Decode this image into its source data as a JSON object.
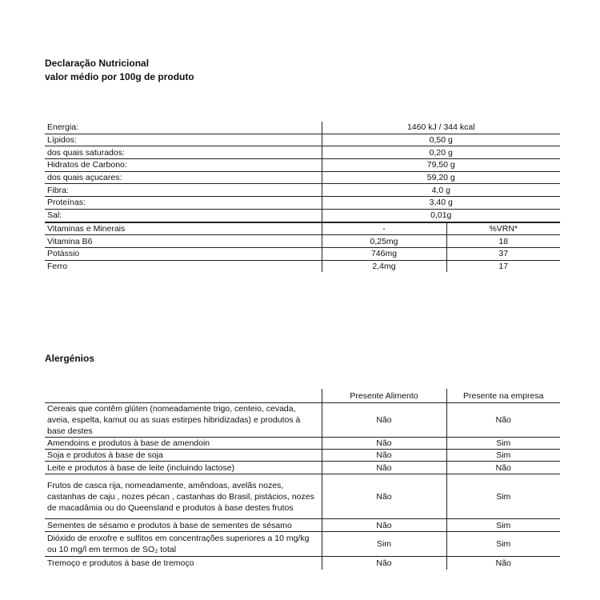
{
  "nutrition": {
    "title": "Declaração Nutricional",
    "subtitle": "valor médio por 100g de produto",
    "rows": [
      {
        "label": "Energia:",
        "value": "1460 kJ / 344 kcal"
      },
      {
        "label": "Lípidos:",
        "value": "0,50 g"
      },
      {
        "label": "dos quais saturados:",
        "value": "0,20 g"
      },
      {
        "label": "Hidratos de Carbono:",
        "value": "79,50 g"
      },
      {
        "label": "dos quais açucares:",
        "value": "59,20 g"
      },
      {
        "label": "Fibra:",
        "value": "4,0 g"
      },
      {
        "label": "Proteínas:",
        "value": "3,40 g"
      },
      {
        "label": "Sal:",
        "value": "0,01g"
      }
    ],
    "vitamins": [
      {
        "label": "Vitaminas e Minerais",
        "value": "-",
        "vrn": "%VRN*"
      },
      {
        "label": "Vitamina B6",
        "value": "0,25mg",
        "vrn": "18"
      },
      {
        "label": "Potássio",
        "value": "746mg",
        "vrn": "37"
      },
      {
        "label": "Ferro",
        "value": "2,4mg",
        "vrn": "17"
      }
    ]
  },
  "allergens": {
    "title": "Alergénios",
    "headers": [
      "",
      "Presente Alimento",
      "Presente na empresa"
    ],
    "rows": [
      {
        "label": "Cereais que contêm glúten (nomeadamente trigo, centeio, cevada, aveia, espelta, kamut ou as suas estirpes hibridizadas) e produtos à base destes",
        "food": "Não",
        "company": "Não"
      },
      {
        "label": "Amendoins e produtos à base de amendoin",
        "food": "Não",
        "company": "Sim"
      },
      {
        "label": "Soja e produtos à base de soja",
        "food": "Não",
        "company": "Sim"
      },
      {
        "label": "Leite e produtos à base de leite (incluindo lactose)",
        "food": "Não",
        "company": "Não"
      },
      {
        "label": " Frutos de casca rija, nomeadamente, amêndoas, avelãs  nozes, castanhas de caju , nozes pécan , castanhas do Brasil, pistácios, nozes de macadâmia ou do Queensland  e produtos à base destes frutos",
        "food": "Não",
        "company": "Sim"
      },
      {
        "label": "Sementes de sésamo e produtos à base de sementes de sésamo",
        "food": "Não",
        "company": "Sim"
      },
      {
        "label": "Dióxido de enxofre e sulfitos em concentrações superiores a 10 mg/kg ou 10 mg/l em termos de SO₂ total",
        "food": "Sim",
        "company": "Sim"
      },
      {
        "label": "Tremoço e produtos à base de tremoço",
        "food": "Não",
        "company": "Não"
      }
    ]
  }
}
